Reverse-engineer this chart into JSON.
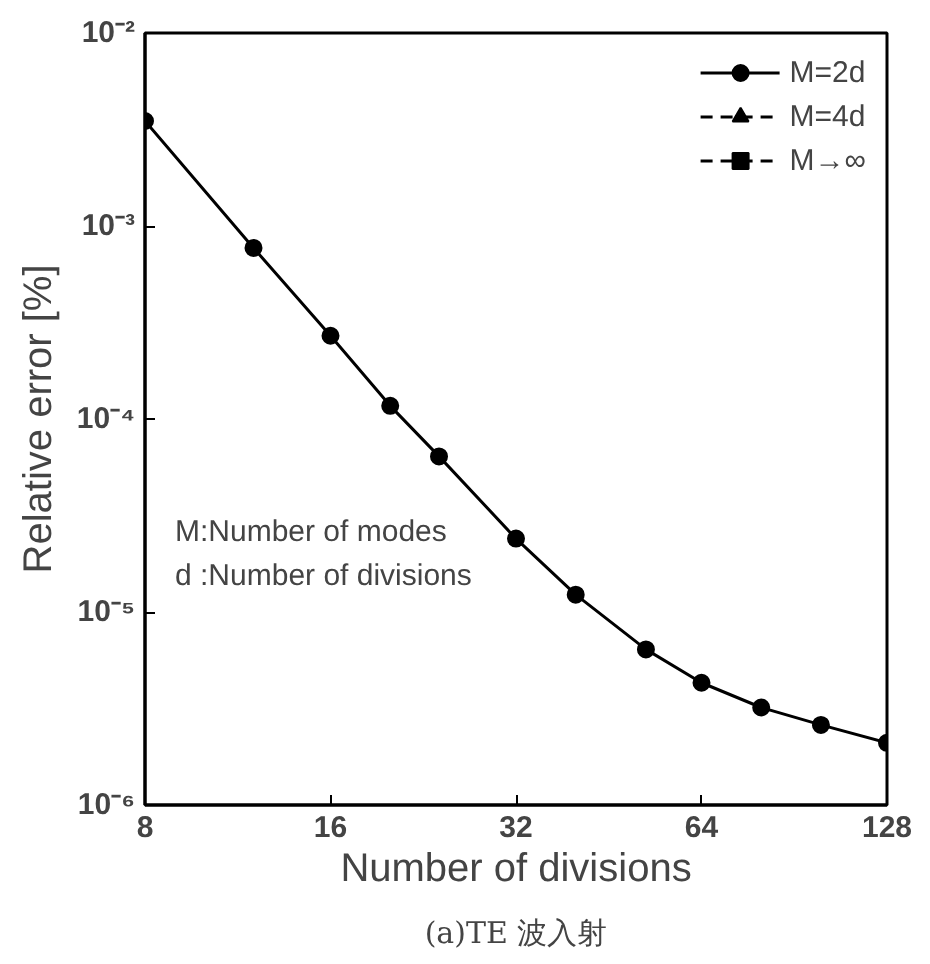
{
  "chart_data": {
    "type": "line",
    "xlabel": "Number of divisions",
    "ylabel": "Relative error [%]",
    "x": [
      8,
      12,
      16,
      20,
      24,
      32,
      40,
      52,
      64,
      80,
      100,
      128
    ],
    "series": [
      {
        "name": "M=2d",
        "color": "#000000",
        "marker": "circle",
        "line_style": "solid",
        "values": [
          0.0035,
          0.00077,
          0.00027,
          0.000117,
          6.4e-05,
          2.4e-05,
          1.23e-05,
          6.4e-06,
          4.3e-06,
          3.2e-06,
          2.6e-06,
          2.1e-06
        ]
      },
      {
        "name": "M=4d",
        "color": "#000000",
        "marker": "triangle",
        "line_style": "dashed",
        "values": [
          null,
          null,
          null,
          null,
          null,
          null,
          null,
          null,
          null,
          null,
          null,
          null
        ]
      },
      {
        "name": "M→∞",
        "color": "#000000",
        "marker": "square",
        "line_style": "dashed",
        "values": [
          null,
          null,
          null,
          null,
          null,
          null,
          null,
          null,
          null,
          null,
          null,
          null
        ]
      }
    ],
    "log": "xy",
    "xlim": [
      8,
      128
    ],
    "ylim": [
      1e-06,
      0.01
    ],
    "xticks": [
      8,
      16,
      32,
      64,
      128
    ],
    "yticks": [
      {
        "value": 1e-06,
        "label": "10⁻⁶"
      },
      {
        "value": 1e-05,
        "label": "10⁻⁵"
      },
      {
        "value": 0.0001,
        "label": "10⁻⁴"
      },
      {
        "value": 0.001,
        "label": "10⁻³"
      },
      {
        "value": 0.01,
        "label": "10⁻²"
      }
    ],
    "grid": false,
    "legend": "top right",
    "annotations": [
      "M:Number of modes",
      "d :Number of divisions",
      "(a)TE 波入射"
    ]
  }
}
